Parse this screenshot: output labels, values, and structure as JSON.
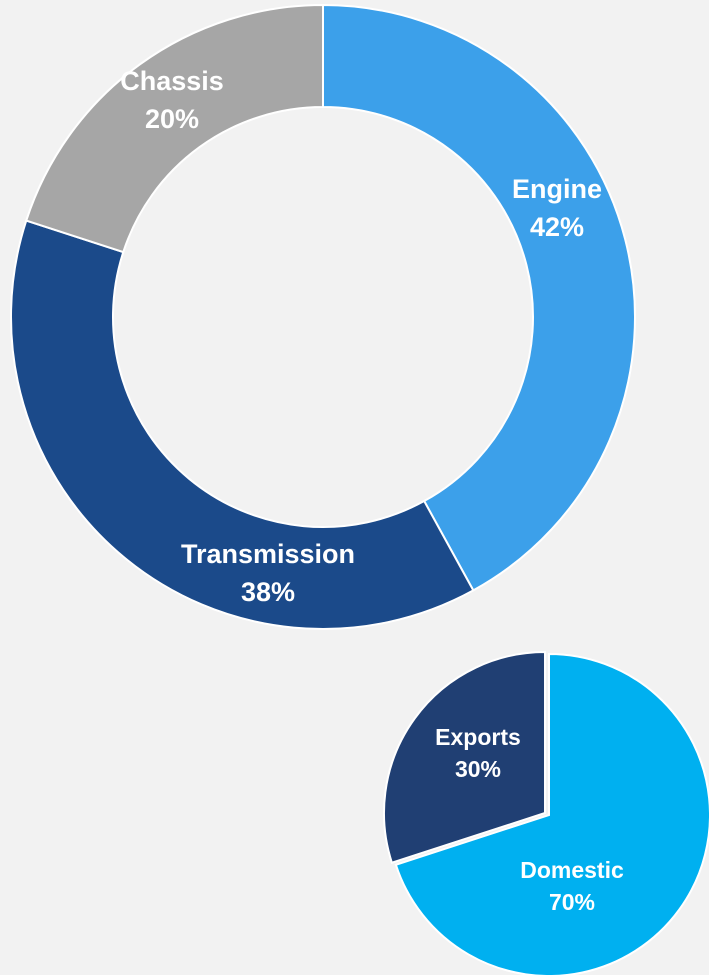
{
  "chart_data": [
    {
      "type": "donut",
      "categories": [
        "Engine",
        "Transmission",
        "Chassis"
      ],
      "values": [
        42,
        38,
        20
      ],
      "value_labels": [
        "42%",
        "38%",
        "20%"
      ],
      "colors": [
        "#3ca0ea",
        "#1b4a8a",
        "#a6a6a6"
      ]
    },
    {
      "type": "pie",
      "categories": [
        "Domestic",
        "Exports"
      ],
      "values": [
        70,
        30
      ],
      "value_labels": [
        "70%",
        "30%"
      ],
      "colors": [
        "#00b0f0",
        "#203f73"
      ]
    }
  ]
}
